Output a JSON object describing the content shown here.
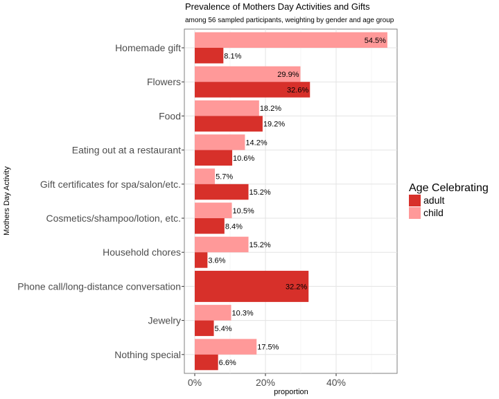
{
  "chart_data": {
    "type": "bar",
    "orientation": "horizontal",
    "title": "Prevalence of Mothers Day Activities and Gifts",
    "subtitle": "among 56 sampled participants, weighting by gender and age group",
    "xlabel": "proportion",
    "ylabel": "Mothers Day Activity",
    "xlim": [
      0,
      0.57
    ],
    "x_ticks": [
      0,
      0.2,
      0.4
    ],
    "x_tick_labels": [
      "0%",
      "20%",
      "40%"
    ],
    "grid": true,
    "legend": {
      "title": "Age Celebrating",
      "placement": "right",
      "entries": [
        "adult",
        "child"
      ]
    },
    "categories": [
      "Homemade gift",
      "Flowers",
      "Food",
      "Eating out at a restaurant",
      "Gift certificates for spa/salon/etc.",
      "Cosmetics/shampoo/lotion, etc.",
      "Household chores",
      "Phone call/long-distance conversation",
      "Jewelry",
      "Nothing special"
    ],
    "series": [
      {
        "name": "child",
        "color": "#ff9999",
        "values": [
          0.545,
          0.299,
          0.182,
          0.142,
          0.057,
          0.105,
          0.152,
          null,
          0.103,
          0.175
        ],
        "labels": [
          "54.5%",
          "29.9%",
          "18.2%",
          "14.2%",
          "5.7%",
          "10.5%",
          "15.2%",
          null,
          "10.3%",
          "17.5%"
        ]
      },
      {
        "name": "adult",
        "color": "#d7302a",
        "values": [
          0.081,
          0.326,
          0.192,
          0.106,
          0.152,
          0.084,
          0.036,
          0.322,
          0.054,
          0.066
        ],
        "labels": [
          "8.1%",
          "32.6%",
          "19.2%",
          "10.6%",
          "15.2%",
          "8.4%",
          "3.6%",
          "32.2%",
          "5.4%",
          "6.6%"
        ]
      }
    ]
  }
}
